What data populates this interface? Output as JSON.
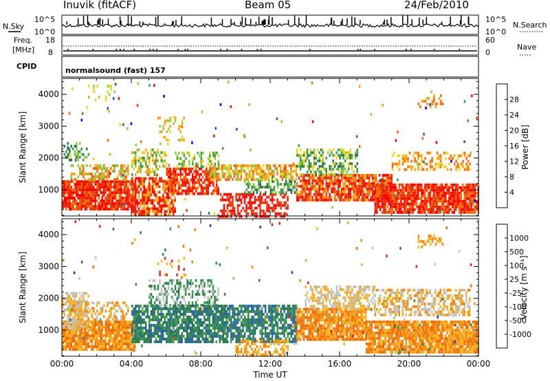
{
  "header": {
    "title": "Inuvik (fitACF)",
    "beam": "Beam 05",
    "date": "24/Feb/2010"
  },
  "top_panels": {
    "nsky_label": "N.Sky",
    "nsearch_label": "N.Search",
    "nsky_ticks": [
      "10^5",
      "10^0"
    ],
    "freq_label_1": "Freq.",
    "freq_label_2": "[MHz]",
    "freq_ticks": [
      "18",
      "8"
    ],
    "nave_ticks": [
      "60",
      "0"
    ],
    "nave_label": "Nave",
    "cpid_label": "CPID",
    "cpid_value": "normalsound (fast) 157"
  },
  "chart_data": [
    {
      "type": "heatmap",
      "title": "",
      "xlabel": "",
      "ylabel": "Slant Range [km]",
      "x_ticks": [
        "00:00",
        "04:00",
        "08:00",
        "12:00",
        "16:00",
        "20:00",
        "00:00"
      ],
      "y_ticks": [
        1000,
        2000,
        3000,
        4000
      ],
      "ylim": [
        180,
        4500
      ],
      "colorbar": {
        "label": "Power [dB]",
        "ticks": [
          "4",
          "8",
          "12",
          "16",
          "20",
          "24",
          "28"
        ],
        "colors": [
          "#0000ff",
          "#2a55c8",
          "#2f6e4f",
          "#3f9a4f",
          "#8acb40",
          "#f2d21a",
          "#f7a21a",
          "#f46a0e",
          "#e8340a",
          "#ff0000"
        ]
      }
    },
    {
      "type": "heatmap",
      "title": "",
      "xlabel": "Time UT",
      "ylabel": "Slant Range [km]",
      "x_ticks": [
        "00:00",
        "04:00",
        "08:00",
        "12:00",
        "16:00",
        "20:00",
        "00:00"
      ],
      "y_ticks": [
        1000,
        2000,
        3000,
        4000
      ],
      "ylim": [
        180,
        4500
      ],
      "colorbar": {
        "label": "Velocity [m s⁻¹]",
        "ticks": [
          "1000",
          "500",
          "100",
          "25",
          "-25",
          "-100",
          "-500",
          "-1000"
        ],
        "colors": [
          "#1f3fc6",
          "#2e66a8",
          "#2f7d4d",
          "#3f9a4f",
          "#8ed14a",
          "#c0c0c0",
          "#f7b020",
          "#f48a10",
          "#ee6a08",
          "#e02020"
        ]
      }
    }
  ],
  "sim": {
    "power_blobs": [
      {
        "t0": 0.0,
        "t1": 4.2,
        "r0": 400,
        "r1": 1300,
        "d": 0.9,
        "c": [
          8,
          9,
          7
        ]
      },
      {
        "t0": 0.5,
        "t1": 3.8,
        "r0": 1300,
        "r1": 1800,
        "d": 0.55,
        "c": [
          7,
          6,
          4
        ]
      },
      {
        "t0": 0.0,
        "t1": 1.5,
        "r0": 1900,
        "r1": 2500,
        "d": 0.35,
        "c": [
          3,
          4,
          2
        ]
      },
      {
        "t0": 4.0,
        "t1": 6.5,
        "r0": 200,
        "r1": 1400,
        "d": 0.75,
        "c": [
          9,
          8,
          6
        ]
      },
      {
        "t0": 4.0,
        "t1": 6.0,
        "r0": 1500,
        "r1": 2300,
        "d": 0.5,
        "c": [
          4,
          3,
          6,
          5
        ]
      },
      {
        "t0": 6.0,
        "t1": 9.0,
        "r0": 900,
        "r1": 1700,
        "d": 0.7,
        "c": [
          8,
          7,
          9
        ]
      },
      {
        "t0": 6.5,
        "t1": 9.0,
        "r0": 1700,
        "r1": 2200,
        "d": 0.45,
        "c": [
          4,
          5,
          3
        ]
      },
      {
        "t0": 8.5,
        "t1": 13.5,
        "r0": 1300,
        "r1": 1800,
        "d": 0.7,
        "c": [
          6,
          5,
          7,
          4
        ]
      },
      {
        "t0": 9.0,
        "t1": 13.0,
        "r0": 200,
        "r1": 900,
        "d": 0.55,
        "c": [
          9,
          8
        ]
      },
      {
        "t0": 10.5,
        "t1": 13.5,
        "r0": 900,
        "r1": 1300,
        "d": 0.5,
        "c": [
          3,
          2,
          4
        ]
      },
      {
        "t0": 13.5,
        "t1": 19.0,
        "r0": 700,
        "r1": 1500,
        "d": 0.85,
        "c": [
          8,
          9,
          7,
          6
        ]
      },
      {
        "t0": 13.5,
        "t1": 17.0,
        "r0": 1500,
        "r1": 2300,
        "d": 0.5,
        "c": [
          3,
          4,
          2,
          5
        ]
      },
      {
        "t0": 18.0,
        "t1": 24.0,
        "r0": 300,
        "r1": 1200,
        "d": 0.85,
        "c": [
          8,
          9,
          7
        ]
      },
      {
        "t0": 19.0,
        "t1": 23.5,
        "r0": 1600,
        "r1": 2200,
        "d": 0.45,
        "c": [
          6,
          7,
          5
        ]
      },
      {
        "t0": 20.5,
        "t1": 22.0,
        "r0": 3600,
        "r1": 4000,
        "d": 0.35,
        "c": [
          6,
          7
        ]
      },
      {
        "t0": 5.5,
        "t1": 7.0,
        "r0": 2600,
        "r1": 3300,
        "d": 0.25,
        "c": [
          6,
          5,
          4
        ]
      },
      {
        "t0": 1.5,
        "t1": 3.0,
        "r0": 3800,
        "r1": 4300,
        "d": 0.12,
        "c": [
          4,
          5
        ]
      }
    ],
    "vel_blobs": [
      {
        "t0": 0.0,
        "t1": 4.2,
        "r0": 400,
        "r1": 1300,
        "d": 0.9,
        "c": [
          7,
          8,
          6
        ]
      },
      {
        "t0": 0.0,
        "t1": 1.5,
        "r0": 1000,
        "r1": 2200,
        "d": 0.6,
        "c": [
          5,
          6
        ]
      },
      {
        "t0": 0.5,
        "t1": 3.8,
        "r0": 1300,
        "r1": 1900,
        "d": 0.5,
        "c": [
          6,
          7,
          5
        ]
      },
      {
        "t0": 4.0,
        "t1": 9.5,
        "r0": 600,
        "r1": 1800,
        "d": 0.8,
        "c": [
          2,
          3,
          1
        ]
      },
      {
        "t0": 5.0,
        "t1": 9.0,
        "r0": 1800,
        "r1": 2600,
        "d": 0.45,
        "c": [
          3,
          5,
          2
        ]
      },
      {
        "t0": 9.5,
        "t1": 13.5,
        "r0": 600,
        "r1": 1800,
        "d": 0.75,
        "c": [
          2,
          3,
          1
        ]
      },
      {
        "t0": 10.0,
        "t1": 13.0,
        "r0": 200,
        "r1": 700,
        "d": 0.45,
        "c": [
          6,
          7
        ]
      },
      {
        "t0": 13.5,
        "t1": 17.5,
        "r0": 700,
        "r1": 1700,
        "d": 0.85,
        "c": [
          7,
          6,
          8
        ]
      },
      {
        "t0": 14.0,
        "t1": 18.0,
        "r0": 1700,
        "r1": 2400,
        "d": 0.55,
        "c": [
          5,
          6
        ]
      },
      {
        "t0": 17.5,
        "t1": 24.0,
        "r0": 300,
        "r1": 1300,
        "d": 0.9,
        "c": [
          7,
          8,
          6
        ]
      },
      {
        "t0": 18.0,
        "t1": 23.5,
        "r0": 1500,
        "r1": 2300,
        "d": 0.55,
        "c": [
          5,
          6,
          7
        ]
      },
      {
        "t0": 20.5,
        "t1": 22.0,
        "r0": 3600,
        "r1": 4000,
        "d": 0.35,
        "c": [
          7,
          6
        ]
      },
      {
        "t0": 5.5,
        "t1": 7.0,
        "r0": 2700,
        "r1": 3300,
        "d": 0.25,
        "c": [
          6,
          9
        ]
      }
    ]
  }
}
